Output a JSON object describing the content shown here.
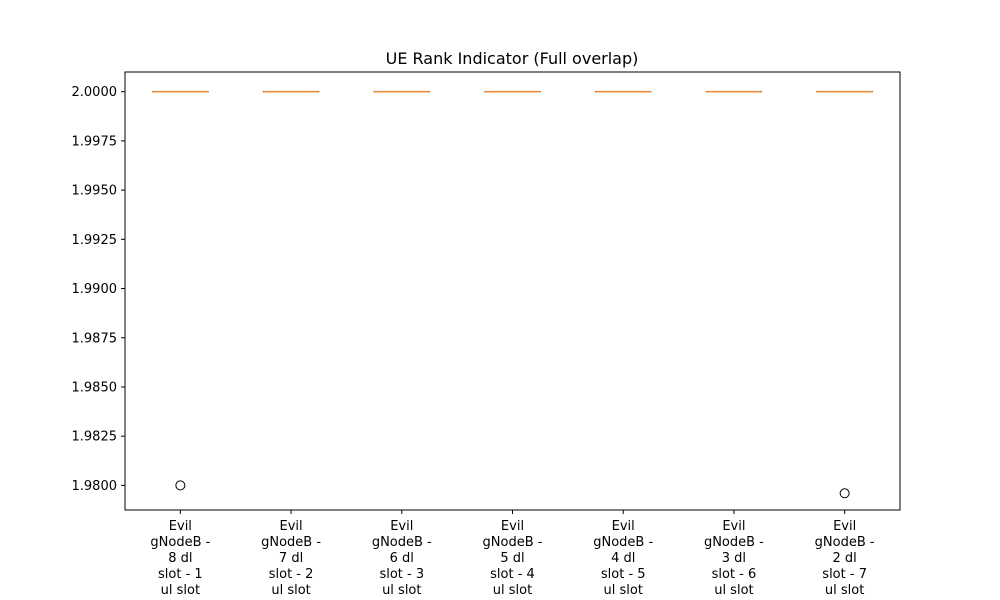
{
  "chart_data": {
    "type": "box",
    "title": "UE Rank Indicator (Full overlap)",
    "xlabel": "",
    "ylabel": "",
    "ylim": [
      1.97875,
      2.001
    ],
    "yticks": [
      2.0,
      1.9975,
      1.995,
      1.9925,
      1.99,
      1.9875,
      1.985,
      1.9825,
      1.98
    ],
    "ytick_labels": [
      "2.0000",
      "1.9975",
      "1.9950",
      "1.9925",
      "1.9900",
      "1.9875",
      "1.9850",
      "1.9825",
      "1.9800"
    ],
    "categories": [
      [
        "Evil",
        "gNodeB -",
        "8 dl",
        "slot - 1",
        "ul slot"
      ],
      [
        "Evil",
        "gNodeB -",
        "7 dl",
        "slot - 2",
        "ul slot"
      ],
      [
        "Evil",
        "gNodeB -",
        "6 dl",
        "slot - 3",
        "ul slot"
      ],
      [
        "Evil",
        "gNodeB -",
        "5 dl",
        "slot - 4",
        "ul slot"
      ],
      [
        "Evil",
        "gNodeB -",
        "4 dl",
        "slot - 5",
        "ul slot"
      ],
      [
        "Evil",
        "gNodeB -",
        "3 dl",
        "slot - 6",
        "ul slot"
      ],
      [
        "Evil",
        "gNodeB -",
        "2 dl",
        "slot - 7",
        "ul slot"
      ]
    ],
    "boxes": [
      {
        "q1": 2.0,
        "median": 2.0,
        "q3": 2.0,
        "whisker_low": 2.0,
        "whisker_high": 2.0,
        "outliers": [
          1.98
        ]
      },
      {
        "q1": 2.0,
        "median": 2.0,
        "q3": 2.0,
        "whisker_low": 2.0,
        "whisker_high": 2.0,
        "outliers": []
      },
      {
        "q1": 2.0,
        "median": 2.0,
        "q3": 2.0,
        "whisker_low": 2.0,
        "whisker_high": 2.0,
        "outliers": []
      },
      {
        "q1": 2.0,
        "median": 2.0,
        "q3": 2.0,
        "whisker_low": 2.0,
        "whisker_high": 2.0,
        "outliers": []
      },
      {
        "q1": 2.0,
        "median": 2.0,
        "q3": 2.0,
        "whisker_low": 2.0,
        "whisker_high": 2.0,
        "outliers": []
      },
      {
        "q1": 2.0,
        "median": 2.0,
        "q3": 2.0,
        "whisker_low": 2.0,
        "whisker_high": 2.0,
        "outliers": []
      },
      {
        "q1": 2.0,
        "median": 2.0,
        "q3": 2.0,
        "whisker_low": 2.0,
        "whisker_high": 2.0,
        "outliers": [
          1.9796
        ]
      }
    ],
    "grid": false,
    "colors": {
      "median": "#f08c3a",
      "box": "#000000",
      "outlier": "#000000"
    }
  }
}
